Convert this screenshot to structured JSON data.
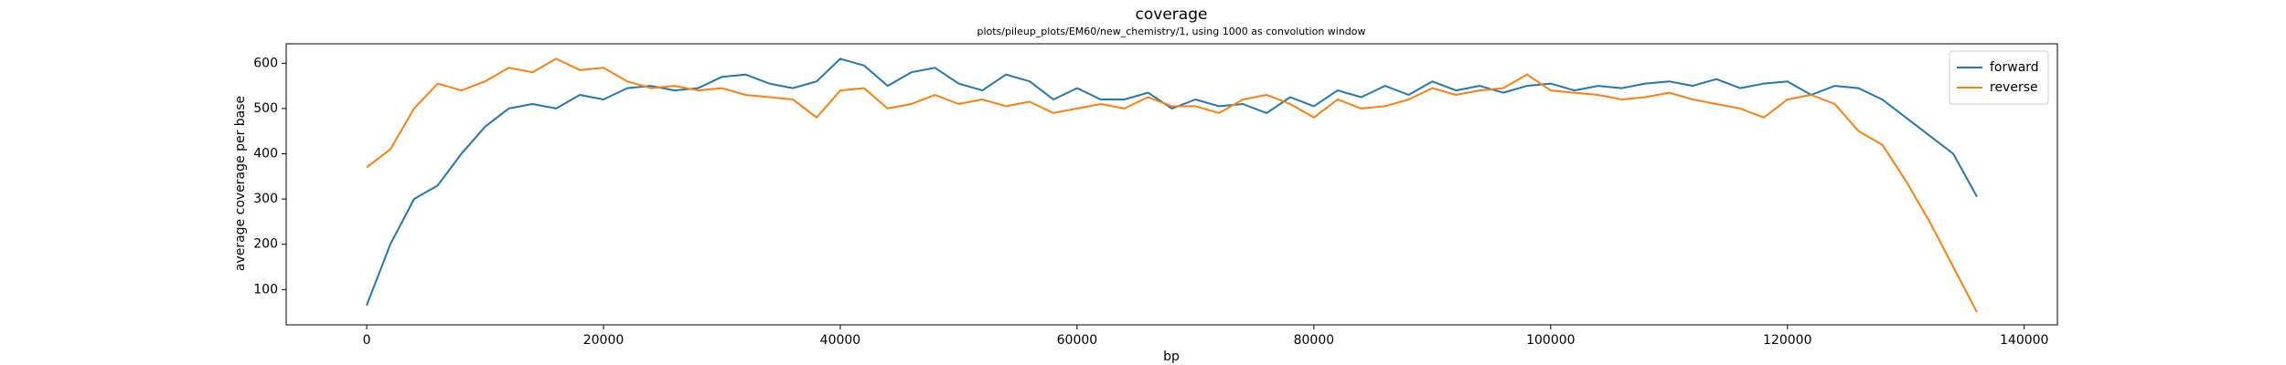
{
  "chart_data": {
    "type": "line",
    "title": "coverage",
    "subtitle": "plots/pileup_plots/EM60/new_chemistry/1, using 1000 as convolution window",
    "x_label": "bp",
    "y_label": "average coverage per base",
    "x": [
      0,
      2000,
      4000,
      6000,
      8000,
      10000,
      12000,
      14000,
      16000,
      18000,
      20000,
      22000,
      24000,
      26000,
      28000,
      30000,
      32000,
      34000,
      36000,
      38000,
      40000,
      42000,
      44000,
      46000,
      48000,
      50000,
      52000,
      54000,
      56000,
      58000,
      60000,
      62000,
      64000,
      66000,
      68000,
      70000,
      72000,
      74000,
      76000,
      78000,
      80000,
      82000,
      84000,
      86000,
      88000,
      90000,
      92000,
      94000,
      96000,
      98000,
      100000,
      102000,
      104000,
      106000,
      108000,
      110000,
      112000,
      114000,
      116000,
      118000,
      120000,
      122000,
      124000,
      126000,
      128000,
      130000,
      132000,
      134000,
      136000
    ],
    "series": [
      {
        "name": "forward",
        "color": "#1f77b4",
        "values": [
          65,
          200,
          300,
          330,
          400,
          460,
          500,
          510,
          500,
          530,
          520,
          545,
          550,
          540,
          545,
          570,
          575,
          555,
          545,
          560,
          610,
          595,
          550,
          580,
          590,
          555,
          540,
          575,
          560,
          520,
          545,
          520,
          520,
          535,
          500,
          520,
          505,
          510,
          490,
          525,
          505,
          540,
          525,
          550,
          530,
          560,
          540,
          550,
          535,
          550,
          555,
          540,
          550,
          545,
          555,
          560,
          550,
          565,
          545,
          555,
          560,
          530,
          550,
          545,
          520,
          480,
          440,
          400,
          305
        ]
      },
      {
        "name": "reverse",
        "color": "#ff7f0e",
        "values": [
          370,
          410,
          500,
          555,
          540,
          560,
          590,
          580,
          610,
          585,
          590,
          560,
          545,
          550,
          540,
          545,
          530,
          525,
          520,
          480,
          540,
          545,
          500,
          510,
          530,
          510,
          520,
          505,
          515,
          490,
          500,
          510,
          500,
          525,
          505,
          505,
          490,
          520,
          530,
          510,
          480,
          520,
          500,
          505,
          520,
          545,
          530,
          540,
          545,
          575,
          540,
          535,
          530,
          520,
          525,
          535,
          520,
          510,
          500,
          480,
          520,
          530,
          510,
          450,
          420,
          340,
          250,
          150,
          50
        ]
      }
    ],
    "xlim": [
      -6800,
      142800
    ],
    "ylim": [
      22,
      643
    ],
    "xticks": [
      0,
      20000,
      40000,
      60000,
      80000,
      100000,
      120000,
      140000
    ],
    "yticks": [
      100,
      200,
      300,
      400,
      500,
      600
    ],
    "legend": "upper right"
  }
}
